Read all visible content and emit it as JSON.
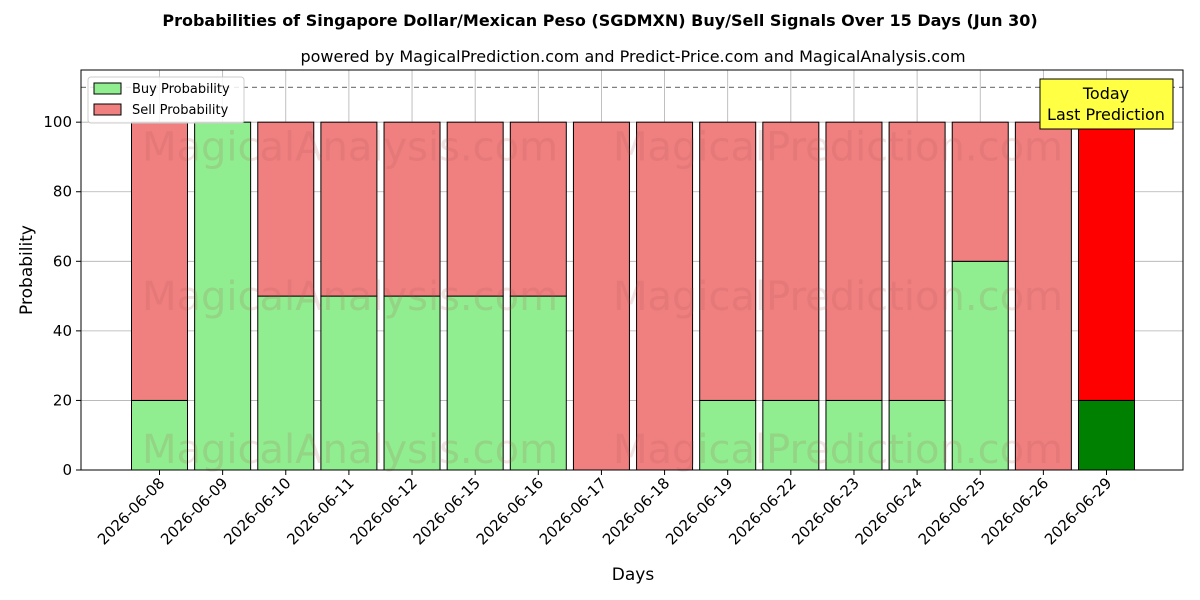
{
  "chart_data": {
    "type": "bar",
    "stacked": true,
    "title": "Probabilities of Singapore Dollar/Mexican Peso (SGDMXN) Buy/Sell Signals Over 15 Days (Jun 30)",
    "subtitle": "powered by MagicalPrediction.com and Predict-Price.com and MagicalAnalysis.com",
    "xlabel": "Days",
    "ylabel": "Probability",
    "ylim": [
      0,
      115
    ],
    "yticks": [
      0,
      20,
      40,
      60,
      80,
      100
    ],
    "reference_line": 110,
    "grid": true,
    "legend_position": "top-left",
    "categories": [
      "2026-06-08",
      "2026-06-09",
      "2026-06-10",
      "2026-06-11",
      "2026-06-12",
      "2026-06-15",
      "2026-06-16",
      "2026-06-17",
      "2026-06-18",
      "2026-06-19",
      "2026-06-22",
      "2026-06-23",
      "2026-06-24",
      "2026-06-25",
      "2026-06-26",
      "2026-06-29"
    ],
    "series": [
      {
        "name": "Buy Probability",
        "color": "#90ee90",
        "highlight_color": "#008000",
        "values": [
          20,
          100,
          50,
          50,
          50,
          50,
          50,
          0,
          0,
          20,
          20,
          20,
          20,
          60,
          0,
          20
        ]
      },
      {
        "name": "Sell Probability",
        "color": "#f08080",
        "highlight_color": "#ff0000",
        "values": [
          80,
          0,
          50,
          50,
          50,
          50,
          50,
          100,
          100,
          80,
          80,
          80,
          80,
          40,
          100,
          80
        ]
      }
    ],
    "highlight_index": 15,
    "annotation": {
      "lines": [
        "Today",
        "Last Prediction"
      ],
      "color": "#ffff44"
    },
    "watermarks": [
      "MagicalAnalysis.com",
      "MagicalPrediction.com"
    ]
  }
}
